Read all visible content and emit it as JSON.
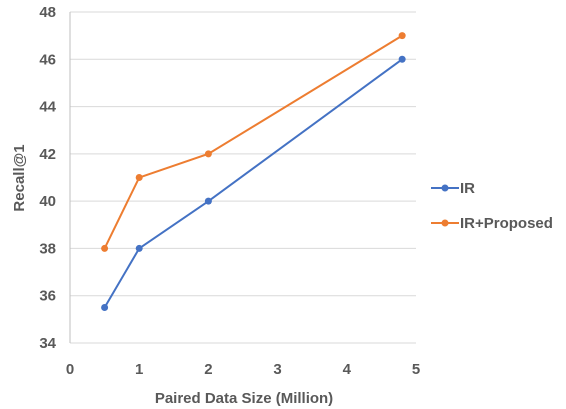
{
  "chart_data": {
    "type": "line",
    "title": "",
    "xlabel": "Paired Data Size (Million)",
    "ylabel": "Recall@1",
    "xlim": [
      0,
      5
    ],
    "ylim": [
      34,
      48
    ],
    "xticks": [
      "0",
      "1",
      "2",
      "3",
      "4",
      "5"
    ],
    "yticks": [
      "34",
      "36",
      "38",
      "40",
      "42",
      "44",
      "46",
      "48"
    ],
    "grid": "horizontal",
    "legend_position": "right",
    "series": [
      {
        "name": "IR",
        "color": "#4472c4",
        "x": [
          0.5,
          1,
          2,
          4.8
        ],
        "y": [
          35.5,
          38,
          40,
          46
        ]
      },
      {
        "name": "IR+Proposed",
        "color": "#ed7d31",
        "x": [
          0.5,
          1,
          2,
          4.8
        ],
        "y": [
          38,
          41,
          42,
          47
        ]
      }
    ]
  }
}
